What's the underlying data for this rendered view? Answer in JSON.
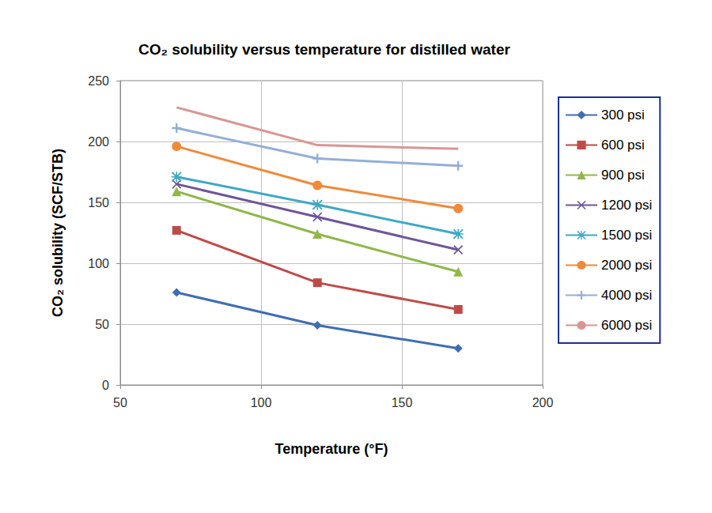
{
  "chart_data": {
    "type": "line",
    "title": "CO₂ solubility versus temperature for distilled water",
    "x_label": "Temperature (°F)",
    "y_label": "CO₂ solubility (SCF/STB)",
    "x": [
      70,
      120,
      170
    ],
    "xlim": [
      50,
      200
    ],
    "xticks": [
      50,
      100,
      150,
      200
    ],
    "ylim": [
      0,
      250
    ],
    "yticks": [
      0,
      50,
      100,
      150,
      200,
      250
    ],
    "grid": true,
    "legend": "right",
    "series": [
      {
        "name": "300 psi",
        "color": "#3f6db3",
        "marker": "diamond",
        "values": [
          76,
          49,
          30
        ]
      },
      {
        "name": "600 psi",
        "color": "#be4b48",
        "marker": "square",
        "values": [
          127,
          84,
          62
        ]
      },
      {
        "name": "900 psi",
        "color": "#8fb74a",
        "marker": "triangle",
        "values": [
          159,
          124,
          93
        ]
      },
      {
        "name": "1200 psi",
        "color": "#6f559a",
        "marker": "x",
        "values": [
          165,
          138,
          111
        ]
      },
      {
        "name": "1500 psi",
        "color": "#3fa8c4",
        "marker": "star",
        "values": [
          171,
          148,
          124
        ]
      },
      {
        "name": "2000 psi",
        "color": "#f08a3a",
        "marker": "circle",
        "values": [
          196,
          164,
          145
        ]
      },
      {
        "name": "4000 psi",
        "color": "#94afd6",
        "marker": "plus",
        "values": [
          211,
          186,
          180
        ]
      },
      {
        "name": "6000 psi",
        "color": "#d99694",
        "marker": "none",
        "values": [
          228,
          197,
          194
        ]
      }
    ]
  }
}
